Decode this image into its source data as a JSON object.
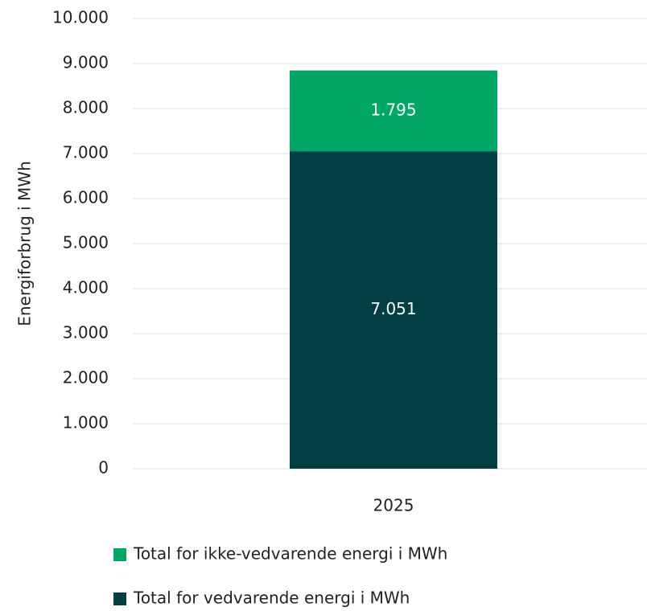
{
  "chart_data": {
    "type": "stacked_bar",
    "y_label": "Energiforbrug i MWh",
    "categories": [
      "2025"
    ],
    "series": [
      {
        "name": "Total for vedvarende energi i MWh",
        "color": "#013f44",
        "values": [
          7051
        ],
        "value_labels": [
          "7.051"
        ]
      },
      {
        "name": "Total for ikke-vedvarende energi i MWh",
        "color": "#00a765",
        "values": [
          1795
        ],
        "value_labels": [
          "1.795"
        ]
      }
    ],
    "ylim": [
      0,
      10000
    ],
    "yticks": [
      0,
      {
        "value": 1000,
        "label": "1.000"
      },
      {
        "value": 2000,
        "label": "2.000"
      },
      {
        "value": 3000,
        "label": "3.000"
      },
      {
        "value": 4000,
        "label": "4.000"
      },
      {
        "value": 5000,
        "label": "5.000"
      },
      {
        "value": 6000,
        "label": "6.000"
      },
      {
        "value": 7000,
        "label": "7.000"
      },
      {
        "value": 8000,
        "label": "8.000"
      },
      {
        "value": 9000,
        "label": "9.000"
      },
      {
        "value": 10000,
        "label": "10.000"
      }
    ],
    "grid": true
  }
}
